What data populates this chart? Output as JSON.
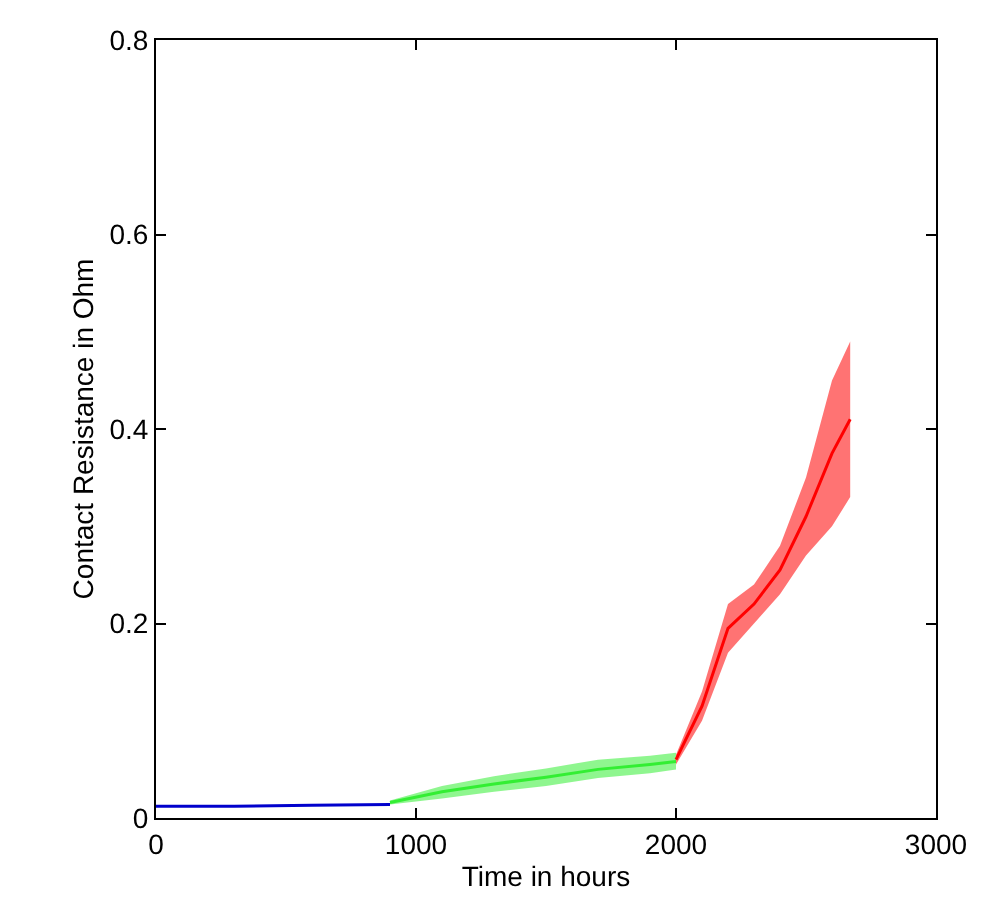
{
  "chart_data": {
    "type": "line",
    "xlabel": "Time in hours",
    "ylabel": "Contact Resistance in Ohm",
    "xlim": [
      0,
      3000
    ],
    "xticks": [
      0,
      1000,
      2000,
      3000
    ],
    "ylim": [
      0,
      0.8
    ],
    "yticks": [
      0,
      0.2,
      0.4,
      0.6,
      0.8
    ],
    "series": [
      {
        "color": "#0000cc",
        "x": [
          0,
          300,
          600,
          900
        ],
        "values": [
          0.012,
          0.012,
          0.013,
          0.014
        ]
      },
      {
        "color": "#33ee33",
        "x": [
          900,
          1100,
          1300,
          1500,
          1700,
          1900,
          2000
        ],
        "values": [
          0.016,
          0.027,
          0.035,
          0.042,
          0.05,
          0.055,
          0.058
        ],
        "lower": [
          0.014,
          0.02,
          0.027,
          0.033,
          0.041,
          0.046,
          0.05
        ],
        "upper": [
          0.018,
          0.033,
          0.043,
          0.051,
          0.06,
          0.064,
          0.067
        ]
      },
      {
        "color": "#ff0000",
        "x": [
          2000,
          2100,
          2200,
          2300,
          2400,
          2500,
          2600,
          2670
        ],
        "values": [
          0.06,
          0.115,
          0.195,
          0.22,
          0.255,
          0.31,
          0.375,
          0.41
        ],
        "lower": [
          0.055,
          0.1,
          0.17,
          0.2,
          0.23,
          0.27,
          0.3,
          0.33
        ],
        "upper": [
          0.065,
          0.13,
          0.22,
          0.24,
          0.28,
          0.35,
          0.45,
          0.49
        ]
      }
    ]
  }
}
